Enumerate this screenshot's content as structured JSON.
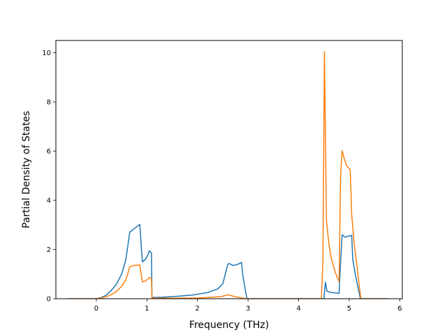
{
  "chart_data": {
    "type": "line",
    "title": "",
    "xlabel": "Frequency (THz)",
    "ylabel": "Partial Density of States",
    "xlim": [
      -0.8,
      6.05
    ],
    "ylim": [
      0,
      10.5
    ],
    "xticks": [
      0,
      1,
      2,
      3,
      4,
      5,
      6
    ],
    "yticks": [
      0,
      2,
      4,
      6,
      8,
      10
    ],
    "grid": false,
    "legend": "none",
    "series": [
      {
        "color": "#1f77b4",
        "points": [
          [
            -0.55,
            0
          ],
          [
            0.0,
            0
          ],
          [
            0.1,
            0.05
          ],
          [
            0.2,
            0.15
          ],
          [
            0.3,
            0.35
          ],
          [
            0.4,
            0.6
          ],
          [
            0.5,
            1.0
          ],
          [
            0.58,
            1.55
          ],
          [
            0.62,
            2.1
          ],
          [
            0.66,
            2.7
          ],
          [
            0.75,
            2.85
          ],
          [
            0.86,
            3.02
          ],
          [
            0.91,
            1.5
          ],
          [
            0.97,
            1.6
          ],
          [
            1.02,
            1.78
          ],
          [
            1.05,
            1.95
          ],
          [
            1.09,
            1.85
          ],
          [
            1.1,
            0.05
          ],
          [
            1.3,
            0.06
          ],
          [
            1.6,
            0.1
          ],
          [
            1.9,
            0.15
          ],
          [
            2.2,
            0.25
          ],
          [
            2.4,
            0.4
          ],
          [
            2.5,
            0.6
          ],
          [
            2.55,
            1.0
          ],
          [
            2.6,
            1.4
          ],
          [
            2.63,
            1.43
          ],
          [
            2.7,
            1.35
          ],
          [
            2.8,
            1.4
          ],
          [
            2.87,
            1.48
          ],
          [
            2.9,
            0.9
          ],
          [
            2.96,
            0.2
          ],
          [
            2.98,
            0
          ],
          [
            4.5,
            0
          ],
          [
            4.53,
            0.67
          ],
          [
            4.56,
            0.3
          ],
          [
            4.65,
            0.25
          ],
          [
            4.8,
            0.22
          ],
          [
            4.83,
            1.5
          ],
          [
            4.86,
            2.6
          ],
          [
            4.92,
            2.5
          ],
          [
            5.05,
            2.58
          ],
          [
            5.07,
            1.6
          ],
          [
            5.12,
            1.0
          ],
          [
            5.18,
            0.4
          ],
          [
            5.22,
            0
          ],
          [
            5.75,
            0
          ]
        ]
      },
      {
        "color": "#ff7f0e",
        "points": [
          [
            -0.55,
            0
          ],
          [
            0.0,
            0
          ],
          [
            0.1,
            0.03
          ],
          [
            0.2,
            0.08
          ],
          [
            0.3,
            0.17
          ],
          [
            0.4,
            0.3
          ],
          [
            0.5,
            0.5
          ],
          [
            0.58,
            0.75
          ],
          [
            0.62,
            1.0
          ],
          [
            0.66,
            1.3
          ],
          [
            0.75,
            1.35
          ],
          [
            0.86,
            1.37
          ],
          [
            0.91,
            0.68
          ],
          [
            0.97,
            0.72
          ],
          [
            1.02,
            0.8
          ],
          [
            1.05,
            0.87
          ],
          [
            1.09,
            0.82
          ],
          [
            1.1,
            0.02
          ],
          [
            1.5,
            0.02
          ],
          [
            2.0,
            0.03
          ],
          [
            2.3,
            0.06
          ],
          [
            2.5,
            0.1
          ],
          [
            2.6,
            0.16
          ],
          [
            2.75,
            0.08
          ],
          [
            2.9,
            0.02
          ],
          [
            2.98,
            0
          ],
          [
            4.45,
            0
          ],
          [
            4.48,
            1.5
          ],
          [
            4.51,
            10.05
          ],
          [
            4.55,
            3.2
          ],
          [
            4.6,
            2.2
          ],
          [
            4.65,
            1.6
          ],
          [
            4.72,
            1.1
          ],
          [
            4.8,
            0.7
          ],
          [
            4.83,
            5.0
          ],
          [
            4.86,
            6.02
          ],
          [
            4.9,
            5.7
          ],
          [
            4.95,
            5.4
          ],
          [
            5.02,
            5.25
          ],
          [
            5.05,
            3.4
          ],
          [
            5.1,
            2.2
          ],
          [
            5.15,
            1.4
          ],
          [
            5.2,
            0.5
          ],
          [
            5.23,
            0
          ],
          [
            5.75,
            0
          ]
        ]
      }
    ]
  }
}
